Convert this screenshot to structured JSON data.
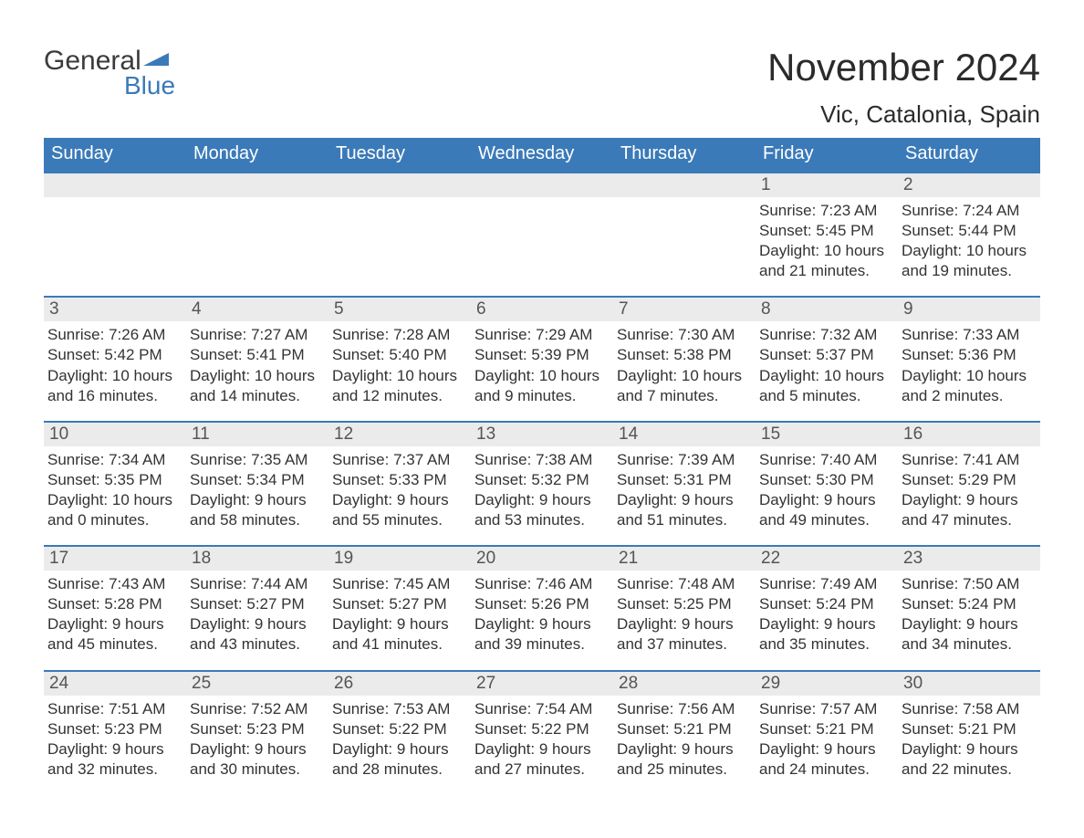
{
  "logo": {
    "word1": "General",
    "word2": "Blue",
    "flag_color": "#3b7ab8"
  },
  "title": "November 2024",
  "location": "Vic, Catalonia, Spain",
  "colors": {
    "header_bg": "#3b7ab8",
    "header_text": "#ffffff",
    "row_border": "#3b7ab8",
    "daynum_bg": "#ebebeb",
    "body_text": "#333333",
    "page_bg": "#ffffff"
  },
  "weekdays": [
    "Sunday",
    "Monday",
    "Tuesday",
    "Wednesday",
    "Thursday",
    "Friday",
    "Saturday"
  ],
  "weeks": [
    [
      null,
      null,
      null,
      null,
      null,
      {
        "n": "1",
        "sr": "7:23 AM",
        "ss": "5:45 PM",
        "dl": "10 hours and 21 minutes."
      },
      {
        "n": "2",
        "sr": "7:24 AM",
        "ss": "5:44 PM",
        "dl": "10 hours and 19 minutes."
      }
    ],
    [
      {
        "n": "3",
        "sr": "7:26 AM",
        "ss": "5:42 PM",
        "dl": "10 hours and 16 minutes."
      },
      {
        "n": "4",
        "sr": "7:27 AM",
        "ss": "5:41 PM",
        "dl": "10 hours and 14 minutes."
      },
      {
        "n": "5",
        "sr": "7:28 AM",
        "ss": "5:40 PM",
        "dl": "10 hours and 12 minutes."
      },
      {
        "n": "6",
        "sr": "7:29 AM",
        "ss": "5:39 PM",
        "dl": "10 hours and 9 minutes."
      },
      {
        "n": "7",
        "sr": "7:30 AM",
        "ss": "5:38 PM",
        "dl": "10 hours and 7 minutes."
      },
      {
        "n": "8",
        "sr": "7:32 AM",
        "ss": "5:37 PM",
        "dl": "10 hours and 5 minutes."
      },
      {
        "n": "9",
        "sr": "7:33 AM",
        "ss": "5:36 PM",
        "dl": "10 hours and 2 minutes."
      }
    ],
    [
      {
        "n": "10",
        "sr": "7:34 AM",
        "ss": "5:35 PM",
        "dl": "10 hours and 0 minutes."
      },
      {
        "n": "11",
        "sr": "7:35 AM",
        "ss": "5:34 PM",
        "dl": "9 hours and 58 minutes."
      },
      {
        "n": "12",
        "sr": "7:37 AM",
        "ss": "5:33 PM",
        "dl": "9 hours and 55 minutes."
      },
      {
        "n": "13",
        "sr": "7:38 AM",
        "ss": "5:32 PM",
        "dl": "9 hours and 53 minutes."
      },
      {
        "n": "14",
        "sr": "7:39 AM",
        "ss": "5:31 PM",
        "dl": "9 hours and 51 minutes."
      },
      {
        "n": "15",
        "sr": "7:40 AM",
        "ss": "5:30 PM",
        "dl": "9 hours and 49 minutes."
      },
      {
        "n": "16",
        "sr": "7:41 AM",
        "ss": "5:29 PM",
        "dl": "9 hours and 47 minutes."
      }
    ],
    [
      {
        "n": "17",
        "sr": "7:43 AM",
        "ss": "5:28 PM",
        "dl": "9 hours and 45 minutes."
      },
      {
        "n": "18",
        "sr": "7:44 AM",
        "ss": "5:27 PM",
        "dl": "9 hours and 43 minutes."
      },
      {
        "n": "19",
        "sr": "7:45 AM",
        "ss": "5:27 PM",
        "dl": "9 hours and 41 minutes."
      },
      {
        "n": "20",
        "sr": "7:46 AM",
        "ss": "5:26 PM",
        "dl": "9 hours and 39 minutes."
      },
      {
        "n": "21",
        "sr": "7:48 AM",
        "ss": "5:25 PM",
        "dl": "9 hours and 37 minutes."
      },
      {
        "n": "22",
        "sr": "7:49 AM",
        "ss": "5:24 PM",
        "dl": "9 hours and 35 minutes."
      },
      {
        "n": "23",
        "sr": "7:50 AM",
        "ss": "5:24 PM",
        "dl": "9 hours and 34 minutes."
      }
    ],
    [
      {
        "n": "24",
        "sr": "7:51 AM",
        "ss": "5:23 PM",
        "dl": "9 hours and 32 minutes."
      },
      {
        "n": "25",
        "sr": "7:52 AM",
        "ss": "5:23 PM",
        "dl": "9 hours and 30 minutes."
      },
      {
        "n": "26",
        "sr": "7:53 AM",
        "ss": "5:22 PM",
        "dl": "9 hours and 28 minutes."
      },
      {
        "n": "27",
        "sr": "7:54 AM",
        "ss": "5:22 PM",
        "dl": "9 hours and 27 minutes."
      },
      {
        "n": "28",
        "sr": "7:56 AM",
        "ss": "5:21 PM",
        "dl": "9 hours and 25 minutes."
      },
      {
        "n": "29",
        "sr": "7:57 AM",
        "ss": "5:21 PM",
        "dl": "9 hours and 24 minutes."
      },
      {
        "n": "30",
        "sr": "7:58 AM",
        "ss": "5:21 PM",
        "dl": "9 hours and 22 minutes."
      }
    ]
  ],
  "labels": {
    "sunrise": "Sunrise:",
    "sunset": "Sunset:",
    "daylight": "Daylight:"
  }
}
